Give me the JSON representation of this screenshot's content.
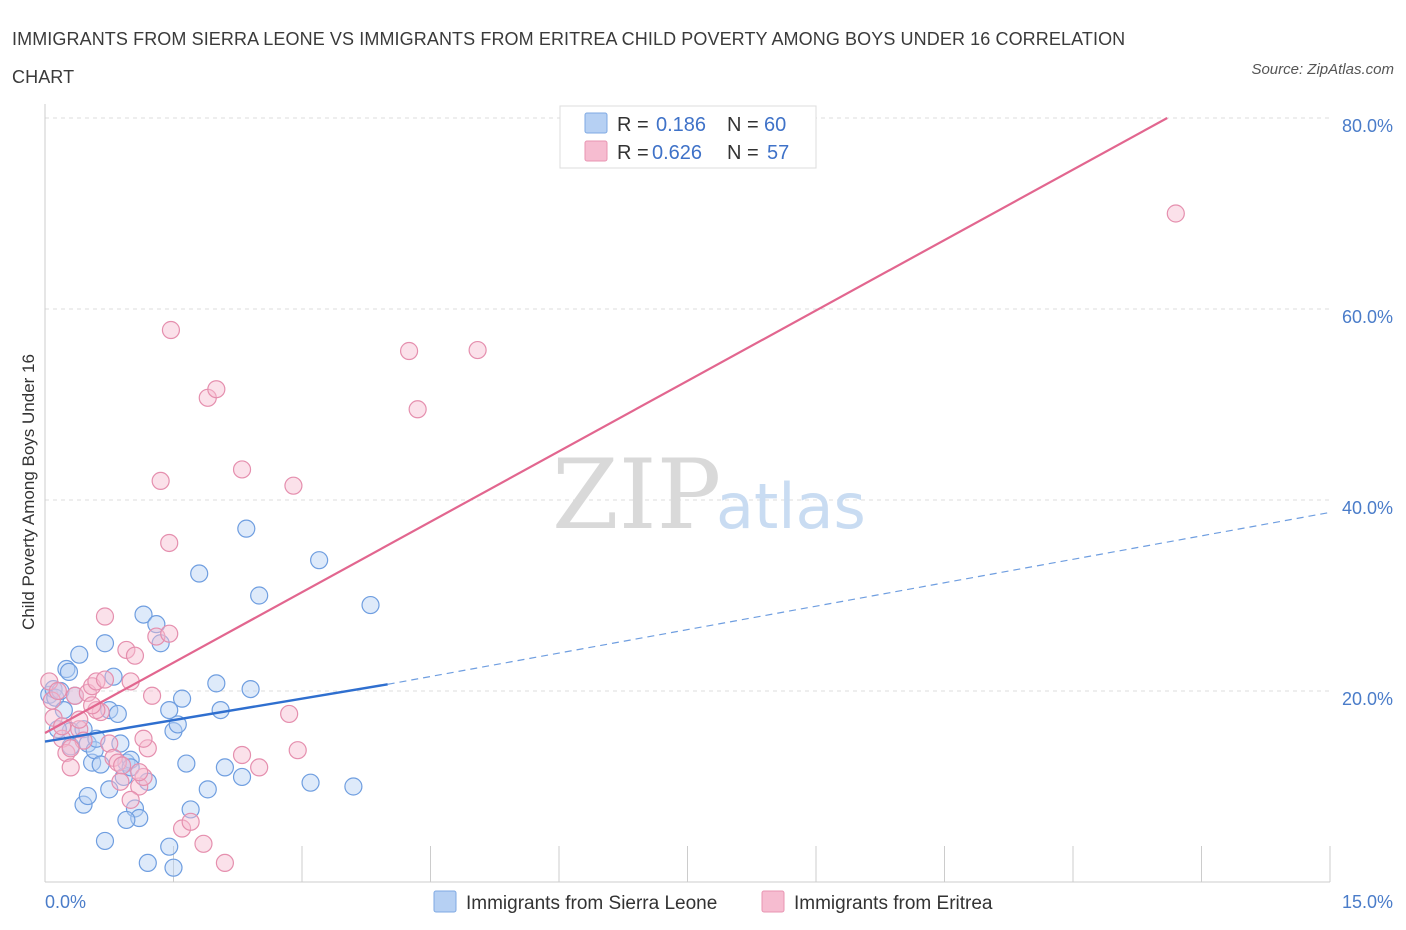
{
  "header": {
    "title": "IMMIGRANTS FROM SIERRA LEONE VS IMMIGRANTS FROM ERITREA CHILD POVERTY AMONG BOYS UNDER 16 CORRELATION CHART",
    "source": "Source: ZipAtlas.com"
  },
  "watermark": {
    "zip": "ZIP",
    "atlas": "atlas"
  },
  "colors": {
    "blue": "#4a86d9",
    "blue_fill": "#b6d0f3",
    "pink": "#e2668f",
    "pink_fill": "#f6bcd0",
    "axis_tick": "#4a7cc9"
  },
  "legend": {
    "rows": [
      {
        "r_label": "R =",
        "r_value": "0.186",
        "n_label": "N =",
        "n_value": "60"
      },
      {
        "r_label": "R =",
        "r_value": "0.626",
        "n_label": "N =",
        "n_value": "57"
      }
    ]
  },
  "chart_data": {
    "type": "scatter",
    "title": "IMMIGRANTS FROM SIERRA LEONE VS IMMIGRANTS FROM ERITREA CHILD POVERTY AMONG BOYS UNDER 16 CORRELATION CHART",
    "xlabel": "",
    "ylabel": "Child Poverty Among Boys Under 16",
    "xlim": [
      0,
      15
    ],
    "ylim": [
      0,
      80
    ],
    "x_tick_labels": [
      "0.0%",
      "15.0%"
    ],
    "y_tick_labels": [
      "20.0%",
      "40.0%",
      "60.0%",
      "80.0%"
    ],
    "y_ticks": [
      20,
      40,
      60,
      80
    ],
    "grid": true,
    "legend_position": "top-center",
    "series": [
      {
        "name": "Immigrants from Sierra Leone",
        "color": "#4a86d9",
        "R": 0.186,
        "N": 60,
        "trend": {
          "x_start": 0,
          "y_start": 14.7,
          "x_solid_end": 4.0,
          "y_solid_end": 20.7,
          "x_end": 15.0,
          "y_end": 38.7
        },
        "points": [
          [
            0.05,
            19.6
          ],
          [
            0.1,
            20.2
          ],
          [
            0.12,
            19.3
          ],
          [
            0.18,
            20.0
          ],
          [
            0.22,
            18.0
          ],
          [
            0.25,
            22.3
          ],
          [
            0.28,
            22.0
          ],
          [
            0.3,
            15.8
          ],
          [
            0.35,
            19.5
          ],
          [
            0.4,
            23.8
          ],
          [
            0.45,
            16.0
          ],
          [
            0.5,
            14.5
          ],
          [
            0.55,
            12.5
          ],
          [
            0.58,
            13.8
          ],
          [
            0.6,
            15.0
          ],
          [
            0.65,
            12.3
          ],
          [
            0.7,
            25.0
          ],
          [
            0.75,
            18.0
          ],
          [
            0.8,
            21.5
          ],
          [
            0.85,
            17.6
          ],
          [
            0.88,
            14.5
          ],
          [
            0.92,
            11.0
          ],
          [
            0.95,
            12.5
          ],
          [
            1.0,
            12.8
          ],
          [
            1.05,
            7.7
          ],
          [
            1.1,
            6.7
          ],
          [
            1.15,
            28.0
          ],
          [
            1.2,
            10.5
          ],
          [
            1.3,
            27.0
          ],
          [
            1.35,
            25.0
          ],
          [
            1.45,
            18.0
          ],
          [
            1.5,
            15.8
          ],
          [
            1.55,
            16.5
          ],
          [
            1.6,
            19.2
          ],
          [
            1.65,
            12.4
          ],
          [
            1.7,
            7.6
          ],
          [
            1.8,
            32.3
          ],
          [
            1.9,
            9.7
          ],
          [
            2.0,
            20.8
          ],
          [
            2.05,
            18.0
          ],
          [
            2.1,
            12.0
          ],
          [
            2.3,
            11.0
          ],
          [
            2.35,
            37.0
          ],
          [
            2.4,
            20.2
          ],
          [
            2.5,
            30.0
          ],
          [
            3.1,
            10.4
          ],
          [
            3.2,
            33.7
          ],
          [
            3.6,
            10.0
          ],
          [
            3.8,
            29.0
          ],
          [
            0.7,
            4.3
          ],
          [
            1.2,
            2.0
          ],
          [
            1.5,
            1.5
          ],
          [
            1.45,
            3.7
          ],
          [
            0.45,
            8.1
          ],
          [
            0.5,
            9.0
          ],
          [
            0.75,
            9.7
          ],
          [
            0.95,
            6.5
          ],
          [
            0.3,
            14.2
          ],
          [
            0.15,
            16.0
          ],
          [
            1.0,
            12.0
          ]
        ]
      },
      {
        "name": "Immigrants from Eritrea",
        "color": "#e2668f",
        "R": 0.626,
        "N": 57,
        "trend": {
          "x_start": 0,
          "y_start": 15.6,
          "x_end": 13.1,
          "y_end": 80.0
        },
        "points": [
          [
            0.05,
            21.0
          ],
          [
            0.08,
            19.0
          ],
          [
            0.1,
            17.2
          ],
          [
            0.15,
            20.0
          ],
          [
            0.2,
            15.0
          ],
          [
            0.25,
            13.5
          ],
          [
            0.3,
            12.0
          ],
          [
            0.35,
            19.5
          ],
          [
            0.4,
            16.0
          ],
          [
            0.45,
            14.8
          ],
          [
            0.5,
            19.8
          ],
          [
            0.55,
            20.5
          ],
          [
            0.6,
            21.0
          ],
          [
            0.65,
            17.8
          ],
          [
            0.7,
            27.8
          ],
          [
            0.75,
            14.5
          ],
          [
            0.8,
            13.0
          ],
          [
            0.85,
            12.5
          ],
          [
            0.9,
            12.2
          ],
          [
            0.95,
            24.3
          ],
          [
            1.0,
            21.0
          ],
          [
            1.05,
            23.7
          ],
          [
            1.1,
            10.0
          ],
          [
            1.15,
            11.0
          ],
          [
            1.2,
            14.0
          ],
          [
            1.25,
            19.5
          ],
          [
            1.3,
            25.7
          ],
          [
            1.35,
            42.0
          ],
          [
            1.45,
            35.5
          ],
          [
            1.47,
            57.8
          ],
          [
            1.6,
            5.6
          ],
          [
            1.7,
            6.3
          ],
          [
            1.85,
            4.0
          ],
          [
            1.9,
            50.7
          ],
          [
            2.0,
            51.6
          ],
          [
            2.1,
            2.0
          ],
          [
            2.3,
            43.2
          ],
          [
            2.3,
            13.3
          ],
          [
            2.5,
            12.0
          ],
          [
            2.85,
            17.6
          ],
          [
            2.9,
            41.5
          ],
          [
            2.95,
            13.8
          ],
          [
            4.25,
            55.6
          ],
          [
            4.35,
            49.5
          ],
          [
            5.05,
            55.7
          ],
          [
            13.2,
            70.0
          ],
          [
            0.88,
            10.5
          ],
          [
            1.0,
            8.6
          ],
          [
            1.15,
            15.0
          ],
          [
            0.6,
            18.0
          ],
          [
            0.4,
            17.0
          ],
          [
            0.3,
            14.0
          ],
          [
            1.1,
            11.5
          ],
          [
            0.7,
            21.2
          ],
          [
            1.45,
            26.0
          ],
          [
            0.55,
            18.5
          ],
          [
            0.2,
            16.3
          ]
        ]
      }
    ]
  }
}
